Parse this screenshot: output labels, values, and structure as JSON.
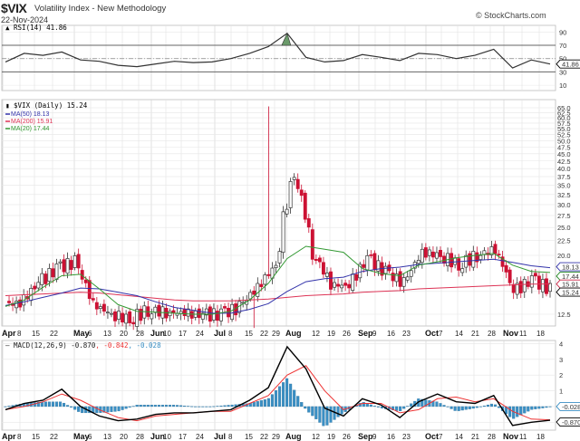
{
  "header": {
    "symbol": "$VIX",
    "name": "Volatility Index - New Methodology",
    "date": "22-Nov-2024",
    "copyright": "© StockCharts.com"
  },
  "rsi_panel": {
    "legend": "RSI(14) 41.86",
    "last_value_label": "41.86",
    "y_ticks": [
      "90",
      "70",
      "50",
      "30",
      "10"
    ]
  },
  "price_panel": {
    "legend_main": "$VIX (Daily) 15.24",
    "legend_ma50": "MA(50) 18.13",
    "legend_ma200": "MA(200) 15.91",
    "legend_ma20": "MA(20) 17.44",
    "y_ticks": [
      "65.0",
      "62.5",
      "60.0",
      "57.5",
      "55.0",
      "52.5",
      "50.0",
      "47.5",
      "45.0",
      "42.5",
      "40.0",
      "37.5",
      "35.0",
      "32.5",
      "30.0",
      "27.5",
      "25.0",
      "22.5",
      "20.0",
      "12.5"
    ],
    "value_tags": [
      {
        "label": "18.13",
        "color": "#3333aa"
      },
      {
        "label": "17.44",
        "color": "#228822"
      },
      {
        "label": "15.91",
        "color": "#cc2244"
      },
      {
        "label": "15.24",
        "color": "#000000"
      }
    ]
  },
  "macd_panel": {
    "legend_name": "MACD(12,26,9)",
    "legend_macd": "-0.870",
    "legend_signal": "-0.842",
    "legend_hist": "-0.028",
    "y_ticks": [
      "4",
      "3",
      "2",
      "1"
    ],
    "value_tags": [
      {
        "label": "-0.028",
        "color": "#3a8fc4"
      },
      {
        "label": "-0.870",
        "color": "#000000"
      }
    ]
  },
  "x_axis": {
    "labels": [
      {
        "t": "Apr",
        "bold": true
      },
      {
        "t": "8"
      },
      {
        "t": "15"
      },
      {
        "t": "22"
      },
      {
        "t": "May",
        "bold": true
      },
      {
        "t": "6"
      },
      {
        "t": "13"
      },
      {
        "t": "20"
      },
      {
        "t": "28"
      },
      {
        "t": "Jun",
        "bold": true
      },
      {
        "t": "10"
      },
      {
        "t": "17"
      },
      {
        "t": "24"
      },
      {
        "t": "Jul",
        "bold": true
      },
      {
        "t": "8"
      },
      {
        "t": "15"
      },
      {
        "t": "22"
      },
      {
        "t": "29"
      },
      {
        "t": "Aug",
        "bold": true
      },
      {
        "t": "12"
      },
      {
        "t": "19"
      },
      {
        "t": "26"
      },
      {
        "t": "Sep",
        "bold": true
      },
      {
        "t": "9"
      },
      {
        "t": "16"
      },
      {
        "t": "23"
      },
      {
        "t": "Oct",
        "bold": true
      },
      {
        "t": "7"
      },
      {
        "t": "14"
      },
      {
        "t": "21"
      },
      {
        "t": "28"
      },
      {
        "t": "Nov",
        "bold": true
      },
      {
        "t": "11"
      },
      {
        "t": "18"
      }
    ]
  },
  "colors": {
    "up_candle": "#ffffff",
    "down_candle": "#cc1133",
    "ma50": "#3333aa",
    "ma200": "#dd3355",
    "ma20": "#339933",
    "rsi_line": "#333333",
    "macd_line": "#000000",
    "signal_line": "#ee3333",
    "histogram": "#3a8fc4",
    "grid": "#e6e6e6"
  },
  "chart_data": [
    {
      "type": "line",
      "title": "RSI(14)",
      "ylim": [
        0,
        100
      ],
      "reference_lines": [
        70,
        50,
        30
      ],
      "x": [
        "Apr 1",
        "Apr 8",
        "Apr 15",
        "Apr 22",
        "May 6",
        "May 13",
        "May 20",
        "May 28",
        "Jun 10",
        "Jun 17",
        "Jun 24",
        "Jul 8",
        "Jul 15",
        "Jul 22",
        "Jul 29",
        "Aug 5",
        "Aug 12",
        "Aug 19",
        "Aug 26",
        "Sep 9",
        "Sep 16",
        "Sep 23",
        "Oct 7",
        "Oct 14",
        "Oct 21",
        "Oct 28",
        "Nov 4",
        "Nov 11",
        "Nov 18",
        "Nov 22"
      ],
      "values": [
        45,
        58,
        55,
        60,
        48,
        46,
        40,
        38,
        42,
        46,
        44,
        45,
        50,
        58,
        68,
        88,
        52,
        45,
        47,
        56,
        52,
        47,
        58,
        56,
        50,
        55,
        64,
        36,
        48,
        41.86
      ]
    },
    {
      "type": "candlestick",
      "title": "$VIX (Daily)",
      "yscale": "log",
      "ylim": [
        11,
        66
      ],
      "last_close": 15.24,
      "moving_averages": {
        "MA(50)": 18.13,
        "MA(200)": 15.91,
        "MA(20)": 17.44
      },
      "x": [
        "Apr 1",
        "Apr 8",
        "Apr 15",
        "Apr 22",
        "May 6",
        "May 13",
        "May 20",
        "May 28",
        "Jun 10",
        "Jun 17",
        "Jun 24",
        "Jul 8",
        "Jul 15",
        "Jul 22",
        "Jul 29",
        "Aug 5",
        "Aug 12",
        "Aug 19",
        "Aug 26",
        "Sep 9",
        "Sep 16",
        "Sep 23",
        "Oct 7",
        "Oct 14",
        "Oct 21",
        "Oct 28",
        "Nov 4",
        "Nov 11",
        "Nov 18",
        "Nov 22"
      ],
      "close": [
        13.6,
        16.0,
        18.0,
        19.0,
        13.5,
        12.5,
        12.0,
        12.9,
        12.7,
        12.6,
        12.4,
        12.5,
        13.2,
        15.5,
        18.5,
        38.6,
        20.4,
        15.9,
        15.6,
        19.5,
        17.5,
        16.0,
        20.5,
        20.0,
        18.5,
        20.0,
        21.0,
        14.9,
        16.5,
        15.24
      ],
      "ma50": [
        13.4,
        13.8,
        14.3,
        14.8,
        15.4,
        15.3,
        14.9,
        14.5,
        13.8,
        13.2,
        12.9,
        12.6,
        12.6,
        13.0,
        13.6,
        15.0,
        16.2,
        16.6,
        16.8,
        17.6,
        18.0,
        18.2,
        18.6,
        18.8,
        19.0,
        19.2,
        19.4,
        18.9,
        18.4,
        18.13
      ],
      "ma200": [
        14.5,
        14.6,
        14.7,
        14.8,
        14.9,
        14.8,
        14.6,
        14.4,
        14.2,
        14.0,
        13.9,
        13.9,
        13.9,
        14.0,
        14.1,
        14.3,
        14.5,
        14.6,
        14.7,
        14.9,
        15.0,
        15.1,
        15.3,
        15.4,
        15.5,
        15.6,
        15.7,
        15.8,
        15.9,
        15.91
      ],
      "ma20": [
        13.3,
        14.0,
        15.5,
        17.0,
        17.2,
        15.3,
        13.5,
        12.8,
        12.7,
        12.6,
        12.5,
        12.5,
        12.8,
        14.0,
        16.0,
        19.5,
        21.5,
        21.0,
        20.5,
        18.0,
        17.3,
        17.0,
        18.5,
        19.0,
        19.6,
        20.0,
        20.3,
        18.5,
        17.6,
        17.44
      ]
    },
    {
      "type": "line",
      "title": "MACD(12,26,9)",
      "ylim": [
        -1.5,
        4.2
      ],
      "x": [
        "Apr 1",
        "Apr 8",
        "Apr 15",
        "Apr 22",
        "May 6",
        "May 13",
        "May 20",
        "May 28",
        "Jun 10",
        "Jun 17",
        "Jun 24",
        "Jul 8",
        "Jul 15",
        "Jul 22",
        "Jul 29",
        "Aug 5",
        "Aug 12",
        "Aug 19",
        "Aug 26",
        "Sep 9",
        "Sep 16",
        "Sep 23",
        "Oct 7",
        "Oct 14",
        "Oct 21",
        "Oct 28",
        "Nov 4",
        "Nov 11",
        "Nov 18",
        "Nov 22"
      ],
      "series": [
        {
          "name": "MACD",
          "values": [
            -0.2,
            0.2,
            0.4,
            1.1,
            0.0,
            -0.6,
            -0.9,
            -0.8,
            -0.5,
            -0.4,
            -0.4,
            -0.3,
            -0.2,
            0.4,
            1.2,
            3.8,
            2.4,
            -0.1,
            -0.6,
            0.5,
            0.1,
            -0.7,
            0.3,
            0.8,
            0.3,
            0.2,
            0.7,
            -1.2,
            -1.0,
            -0.87
          ]
        },
        {
          "name": "Signal",
          "values": [
            -0.2,
            0.0,
            0.3,
            0.8,
            0.4,
            -0.2,
            -0.7,
            -0.9,
            -0.6,
            -0.5,
            -0.4,
            -0.3,
            -0.3,
            0.2,
            0.7,
            2.0,
            2.6,
            1.0,
            -0.2,
            0.2,
            0.2,
            -0.4,
            -0.2,
            0.5,
            0.6,
            0.3,
            0.5,
            -0.3,
            -0.8,
            -0.842
          ]
        },
        {
          "name": "Histogram",
          "values": [
            0.0,
            0.2,
            0.3,
            0.3,
            -0.4,
            -0.4,
            -0.3,
            0.1,
            0.1,
            0.1,
            0.0,
            0.0,
            0.1,
            0.2,
            0.5,
            1.8,
            -0.2,
            -1.3,
            -0.4,
            0.3,
            -0.1,
            -0.3,
            0.5,
            0.3,
            -0.3,
            -0.1,
            0.2,
            -0.8,
            -0.2,
            -0.028
          ]
        }
      ]
    }
  ]
}
